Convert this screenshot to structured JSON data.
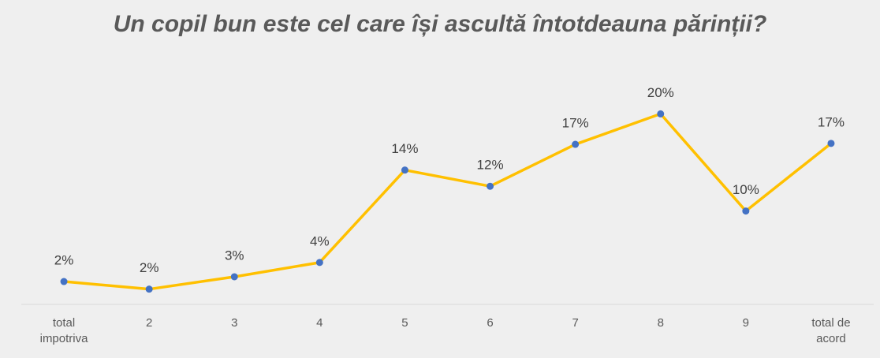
{
  "chart_data": {
    "type": "line",
    "title": "Un copil bun este cel care își ascultă întotdeauna părinții?",
    "categories": [
      "total impotriva",
      "2",
      "3",
      "4",
      "5",
      "6",
      "7",
      "8",
      "9",
      "total de acord"
    ],
    "series": [
      {
        "name": "Un copil bun este cel care își ascultă întotdeauna părinții?",
        "color": "#ffc000",
        "marker_color": "#4472c4",
        "values": [
          2.4,
          1.6,
          2.9,
          4.4,
          14.1,
          12.4,
          16.8,
          20,
          9.8,
          16.9
        ],
        "value_labels": [
          "2%",
          "2%",
          "3%",
          "4%",
          "14%",
          "12%",
          "17%",
          "20%",
          "10%",
          "17%"
        ]
      }
    ],
    "ylim": [
      0,
      25
    ]
  }
}
